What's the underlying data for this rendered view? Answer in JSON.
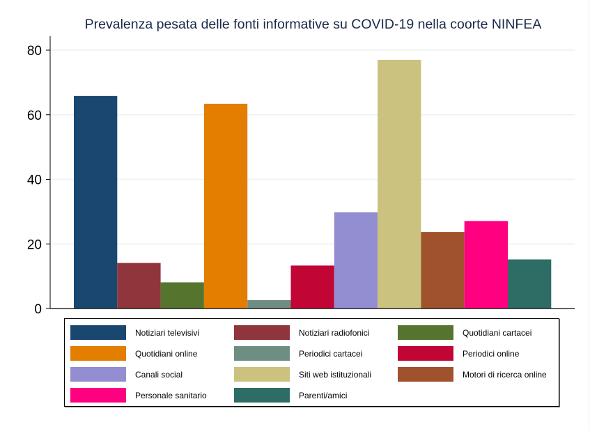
{
  "chart_data": {
    "type": "bar",
    "title": "Prevalenza pesata delle fonti informative su COVID-19 nella coorte NINFEA",
    "xlabel": "",
    "ylabel": "",
    "ylim": [
      0,
      80
    ],
    "yticks": [
      0,
      20,
      40,
      60,
      80
    ],
    "grid": true,
    "legend_position": "bottom",
    "series": [
      {
        "name": "Notiziari televisivi",
        "value": 65.8,
        "color": "#1a476f"
      },
      {
        "name": "Notiziari radiofonici",
        "value": 14.1,
        "color": "#90353b"
      },
      {
        "name": "Quotidiani cartacei",
        "value": 8.1,
        "color": "#55752f"
      },
      {
        "name": "Quotidiani online",
        "value": 63.4,
        "color": "#e37e00"
      },
      {
        "name": "Periodici cartacei",
        "value": 2.6,
        "color": "#6e8e84"
      },
      {
        "name": "Periodici online",
        "value": 13.3,
        "color": "#c10534"
      },
      {
        "name": "Canali social",
        "value": 29.8,
        "color": "#938dd2"
      },
      {
        "name": "Siti web istituzionali",
        "value": 77.0,
        "color": "#cac27e"
      },
      {
        "name": "Motori di ricerca online",
        "value": 23.7,
        "color": "#a0522d"
      },
      {
        "name": "Personale sanitario",
        "value": 27.1,
        "color": "#ff0080"
      },
      {
        "name": "Parenti/amici",
        "value": 15.2,
        "color": "#2d6d66"
      }
    ]
  }
}
